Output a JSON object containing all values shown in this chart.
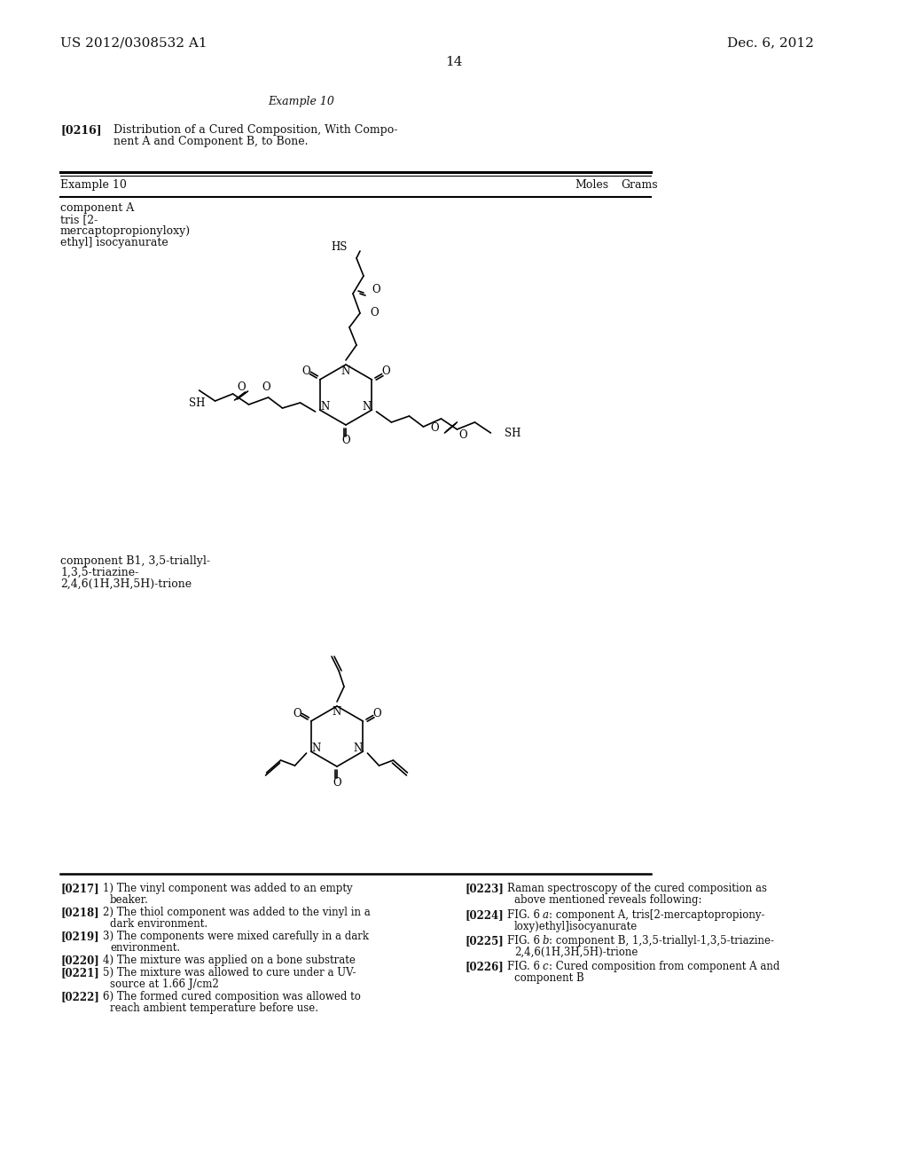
{
  "background_color": "#ffffff",
  "header_left": "US 2012/0308532 A1",
  "header_right": "Dec. 6, 2012",
  "page_number": "14",
  "example_title": "Example 10",
  "table_col1": "Example 10",
  "table_col2": "Moles",
  "table_col3": "Grams",
  "font_size_header": 11,
  "font_size_text": 9,
  "font_size_chem": 8.5
}
